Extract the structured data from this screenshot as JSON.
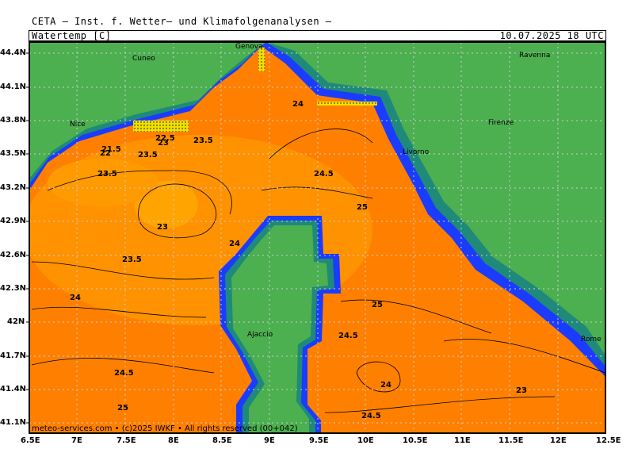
{
  "header": {
    "title": "CETA — Inst. f. Wetter— und Klimafolgenanalysen —",
    "parameter": "Watertemp [C]",
    "valid_time": "10.07.2025 18 UTC"
  },
  "footer": {
    "credit": "meteo-services.com • (c)2025 IWKF • All rights reserved (00+042)"
  },
  "axes": {
    "lat_labels": [
      "44.4N",
      "44.1N",
      "43.8N",
      "43.5N",
      "43.2N",
      "42.9N",
      "42.6N",
      "42.3N",
      "42N",
      "41.7N",
      "41.4N",
      "41.1N"
    ],
    "lon_labels": [
      "6.5E",
      "7E",
      "7.5E",
      "8E",
      "8.5E",
      "9E",
      "9.5E",
      "10E",
      "10.5E",
      "11E",
      "11.5E",
      "12E",
      "12.5E"
    ]
  },
  "places": [
    {
      "name": "Genova"
    },
    {
      "name": "Cuneo"
    },
    {
      "name": "Ravenna"
    },
    {
      "name": "Nice"
    },
    {
      "name": "Firenze"
    },
    {
      "name": "Livorno"
    },
    {
      "name": "Ajaccio"
    },
    {
      "name": "Rome"
    }
  ],
  "contour_labels": [
    "24",
    "22.5",
    "23",
    "23.5",
    "23.5",
    "22",
    "21.5",
    "23.5",
    "24.5",
    "25",
    "23",
    "24",
    "23.5",
    "24",
    "25",
    "24.5",
    "24.5",
    "24",
    "25",
    "24.5",
    "23"
  ],
  "colors": {
    "sea_warm": "#ff8000",
    "sea_mid": "#ff9b00",
    "sea_cool": "#ffaa00",
    "coast_yellow": "#f0e000",
    "coast_blue": "#1b3bff",
    "coast_blue2": "#2e6bff",
    "coast_teal": "#1f8a7a",
    "land": "#4caf50",
    "land_dark": "#2f8f3a",
    "grid": "#c8c8c8"
  }
}
